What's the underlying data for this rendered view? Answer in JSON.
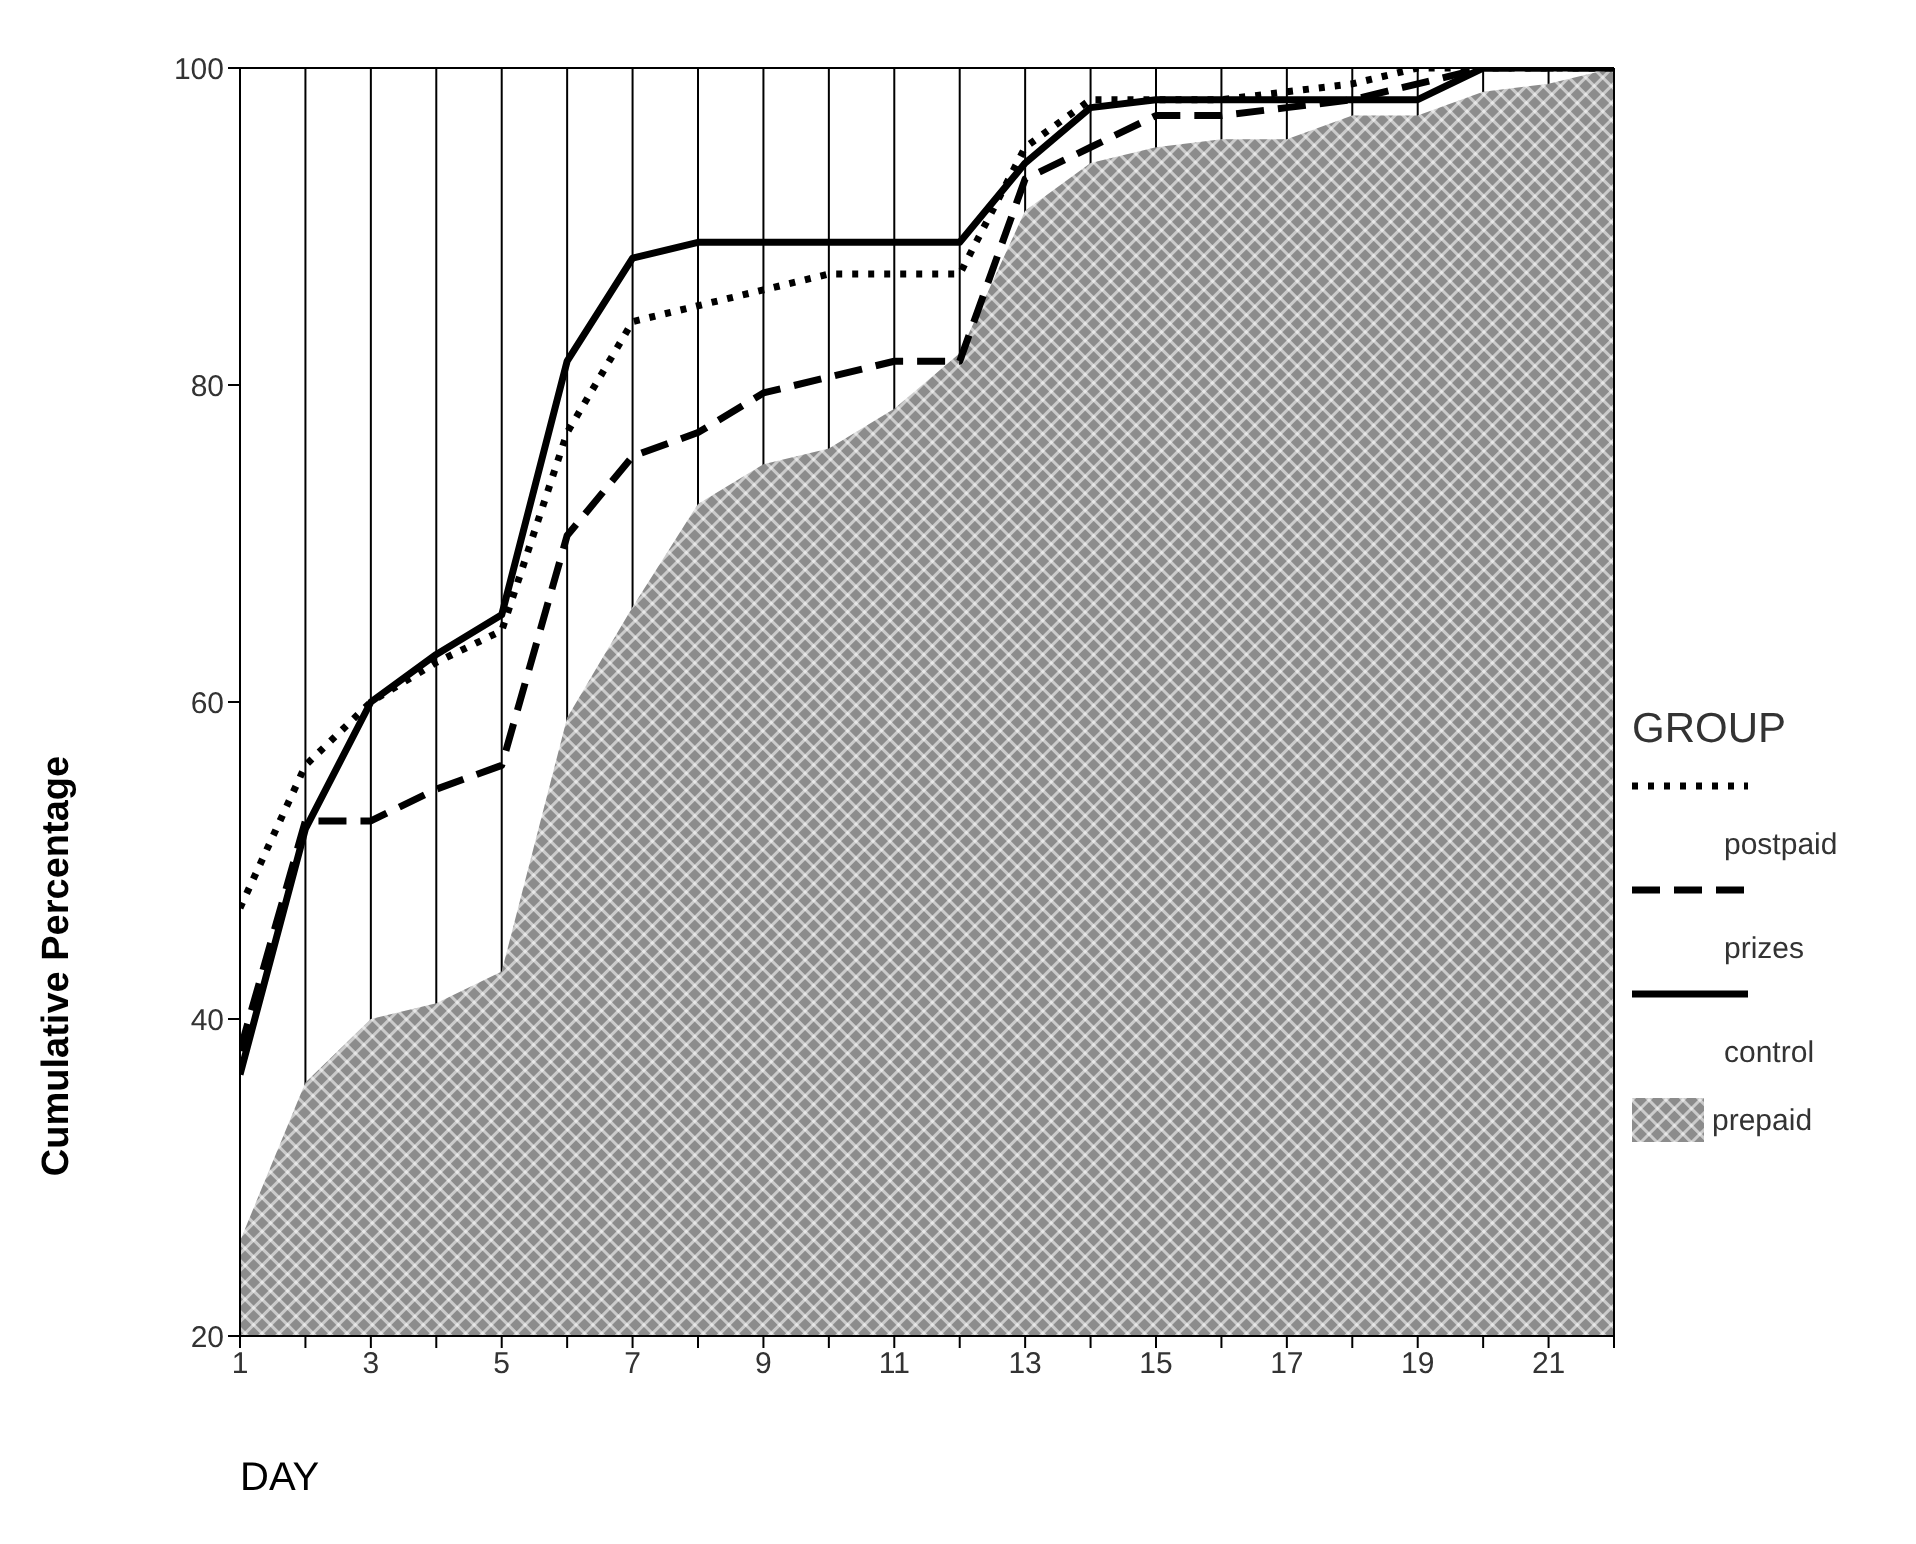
{
  "chart_data": {
    "type": "line",
    "xlabel": "DAY",
    "ylabel": "Cumulative Percentage",
    "legend_title": "GROUP",
    "x": [
      1,
      2,
      3,
      4,
      5,
      6,
      7,
      8,
      9,
      10,
      11,
      12,
      13,
      14,
      15,
      16,
      17,
      18,
      19,
      20,
      21,
      22
    ],
    "series": [
      {
        "name": "postpaid",
        "line_style": "dotted",
        "color": "#000000",
        "values": [
          47,
          56,
          60,
          62.5,
          64.5,
          77,
          84,
          85,
          86,
          87,
          87,
          87,
          95,
          98,
          98,
          98,
          98.5,
          99,
          100,
          100,
          100,
          100
        ]
      },
      {
        "name": "prizes",
        "line_style": "dashed",
        "color": "#000000",
        "values": [
          38,
          52.5,
          52.5,
          54.5,
          56,
          70.5,
          75.5,
          77,
          79.5,
          80.5,
          81.5,
          81.5,
          93,
          95,
          97,
          97,
          97.5,
          98,
          99,
          100,
          100,
          100
        ]
      },
      {
        "name": "control",
        "line_style": "solid",
        "color": "#000000",
        "values": [
          36.5,
          52,
          60,
          63,
          65.5,
          81.5,
          88,
          89,
          89,
          89,
          89,
          89,
          94,
          97.5,
          98,
          98,
          98,
          98,
          98,
          100,
          100,
          100
        ]
      },
      {
        "name": "prepaid",
        "type": "area",
        "color": "#8c8c8c",
        "values": [
          26,
          36,
          40,
          41,
          43,
          59,
          66,
          72.5,
          75,
          76,
          78.5,
          82,
          91,
          94,
          95,
          95.5,
          95.5,
          97,
          97,
          98.5,
          99,
          100
        ]
      }
    ],
    "xlim": [
      1,
      22
    ],
    "xticks": [
      1,
      {
        "value": 2,
        "label": null
      },
      3,
      {
        "value": 4,
        "label": null
      },
      5,
      {
        "value": 6,
        "label": null
      },
      7,
      {
        "value": 8,
        "label": null
      },
      9,
      {
        "value": 10,
        "label": null
      },
      11,
      {
        "value": 12,
        "label": null
      },
      13,
      {
        "value": 14,
        "label": null
      },
      15,
      {
        "value": 16,
        "label": null
      },
      17,
      {
        "value": 18,
        "label": null
      },
      19,
      {
        "value": 20,
        "label": null
      },
      21,
      {
        "value": 22,
        "label": null
      }
    ],
    "ylim": [
      20,
      100
    ],
    "yticks": [
      20,
      40,
      60,
      80,
      100
    ],
    "grid": "x",
    "legend": "right",
    "marker": "none"
  }
}
